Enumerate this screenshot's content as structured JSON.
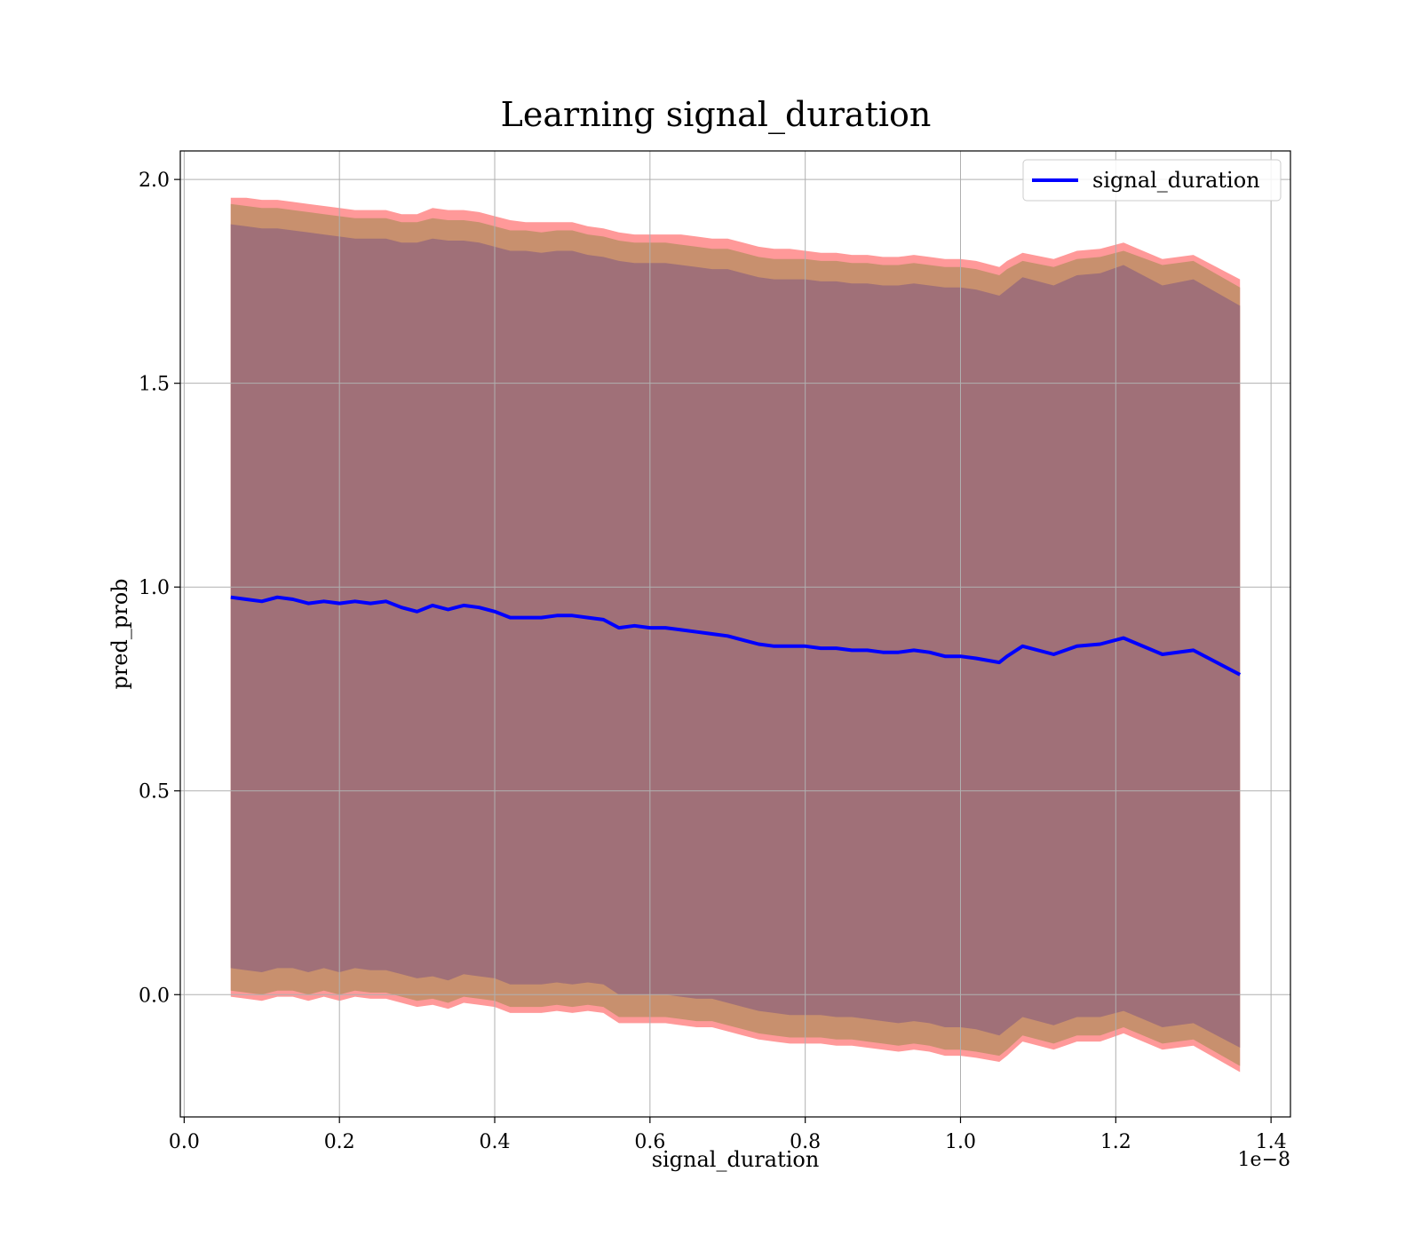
{
  "chart_data": {
    "type": "line",
    "title": "Learning signal_duration",
    "xlabel": "signal_duration",
    "ylabel": "pred_prob",
    "x_offset_label": "1e−8",
    "xlim": [
      -0.005,
      1.425
    ],
    "ylim": [
      -0.3,
      2.07
    ],
    "xticks": [
      0.0,
      0.2,
      0.4,
      0.6,
      0.8,
      1.0,
      1.2,
      1.4
    ],
    "xtick_labels": [
      "0.0",
      "0.2",
      "0.4",
      "0.6",
      "0.8",
      "1.0",
      "1.2",
      "1.4"
    ],
    "yticks": [
      0.0,
      0.5,
      1.0,
      1.5,
      2.0
    ],
    "ytick_labels": [
      "0.0",
      "0.5",
      "1.0",
      "1.5",
      "2.0"
    ],
    "grid": true,
    "legend": {
      "placement": "top-right",
      "entries": [
        "signal_duration"
      ]
    },
    "colors": {
      "line": "#0000ff",
      "band_outer": "#ff9999",
      "band_middle": "#c8906e",
      "band_inner": "#a07078",
      "grid": "#b0b0b0"
    },
    "x": [
      0.06,
      0.08,
      0.1,
      0.12,
      0.14,
      0.16,
      0.18,
      0.2,
      0.22,
      0.24,
      0.26,
      0.28,
      0.3,
      0.32,
      0.34,
      0.36,
      0.38,
      0.4,
      0.42,
      0.44,
      0.46,
      0.48,
      0.5,
      0.52,
      0.54,
      0.56,
      0.58,
      0.6,
      0.62,
      0.64,
      0.66,
      0.68,
      0.7,
      0.72,
      0.74,
      0.76,
      0.78,
      0.8,
      0.82,
      0.84,
      0.86,
      0.88,
      0.9,
      0.92,
      0.94,
      0.96,
      0.98,
      1.0,
      1.02,
      1.05,
      1.06,
      1.08,
      1.12,
      1.15,
      1.18,
      1.21,
      1.26,
      1.3,
      1.36
    ],
    "series": [
      {
        "name": "signal_duration",
        "values": [
          0.975,
          0.97,
          0.965,
          0.975,
          0.97,
          0.96,
          0.965,
          0.96,
          0.965,
          0.96,
          0.965,
          0.95,
          0.94,
          0.955,
          0.945,
          0.955,
          0.95,
          0.94,
          0.925,
          0.925,
          0.925,
          0.93,
          0.93,
          0.925,
          0.92,
          0.9,
          0.905,
          0.9,
          0.9,
          0.895,
          0.89,
          0.885,
          0.88,
          0.87,
          0.86,
          0.855,
          0.855,
          0.855,
          0.85,
          0.85,
          0.845,
          0.845,
          0.84,
          0.84,
          0.845,
          0.84,
          0.83,
          0.83,
          0.825,
          0.815,
          0.83,
          0.855,
          0.835,
          0.855,
          0.86,
          0.875,
          0.835,
          0.845,
          0.785
        ]
      }
    ],
    "bands": [
      {
        "upper": [
          1.955,
          1.955,
          1.95,
          1.95,
          1.945,
          1.94,
          1.935,
          1.93,
          1.925,
          1.925,
          1.925,
          1.915,
          1.915,
          1.93,
          1.925,
          1.925,
          1.92,
          1.91,
          1.9,
          1.895,
          1.895,
          1.895,
          1.895,
          1.885,
          1.88,
          1.87,
          1.865,
          1.865,
          1.865,
          1.865,
          1.86,
          1.855,
          1.855,
          1.845,
          1.835,
          1.83,
          1.83,
          1.825,
          1.82,
          1.82,
          1.815,
          1.815,
          1.81,
          1.81,
          1.815,
          1.81,
          1.805,
          1.805,
          1.8,
          1.785,
          1.8,
          1.82,
          1.805,
          1.825,
          1.83,
          1.845,
          1.805,
          1.815,
          1.755
        ],
        "lower": [
          -0.005,
          -0.01,
          -0.015,
          -0.005,
          -0.005,
          -0.015,
          -0.005,
          -0.015,
          -0.005,
          -0.01,
          -0.01,
          -0.02,
          -0.03,
          -0.025,
          -0.035,
          -0.02,
          -0.025,
          -0.03,
          -0.045,
          -0.045,
          -0.045,
          -0.04,
          -0.045,
          -0.04,
          -0.045,
          -0.07,
          -0.07,
          -0.07,
          -0.07,
          -0.075,
          -0.08,
          -0.08,
          -0.09,
          -0.1,
          -0.11,
          -0.115,
          -0.12,
          -0.12,
          -0.12,
          -0.125,
          -0.125,
          -0.13,
          -0.135,
          -0.14,
          -0.135,
          -0.14,
          -0.15,
          -0.15,
          -0.155,
          -0.165,
          -0.15,
          -0.115,
          -0.135,
          -0.115,
          -0.115,
          -0.095,
          -0.135,
          -0.125,
          -0.19
        ]
      },
      {
        "upper": [
          1.94,
          1.935,
          1.93,
          1.93,
          1.925,
          1.92,
          1.915,
          1.91,
          1.905,
          1.905,
          1.905,
          1.895,
          1.895,
          1.905,
          1.9,
          1.9,
          1.895,
          1.885,
          1.875,
          1.875,
          1.87,
          1.875,
          1.875,
          1.865,
          1.86,
          1.85,
          1.845,
          1.845,
          1.845,
          1.84,
          1.835,
          1.83,
          1.83,
          1.82,
          1.81,
          1.805,
          1.805,
          1.805,
          1.8,
          1.8,
          1.795,
          1.795,
          1.79,
          1.79,
          1.795,
          1.79,
          1.785,
          1.785,
          1.78,
          1.765,
          1.78,
          1.8,
          1.785,
          1.805,
          1.81,
          1.825,
          1.79,
          1.8,
          1.735
        ],
        "lower": [
          0.01,
          0.005,
          0.0,
          0.01,
          0.01,
          0.0,
          0.01,
          0.0,
          0.01,
          0.005,
          0.005,
          -0.005,
          -0.015,
          -0.01,
          -0.02,
          -0.005,
          -0.01,
          -0.015,
          -0.03,
          -0.03,
          -0.03,
          -0.025,
          -0.03,
          -0.025,
          -0.03,
          -0.055,
          -0.055,
          -0.055,
          -0.055,
          -0.06,
          -0.065,
          -0.065,
          -0.075,
          -0.085,
          -0.095,
          -0.1,
          -0.105,
          -0.105,
          -0.105,
          -0.11,
          -0.11,
          -0.115,
          -0.12,
          -0.125,
          -0.12,
          -0.125,
          -0.135,
          -0.135,
          -0.14,
          -0.15,
          -0.135,
          -0.1,
          -0.12,
          -0.1,
          -0.1,
          -0.08,
          -0.12,
          -0.11,
          -0.175
        ]
      },
      {
        "upper": [
          1.89,
          1.885,
          1.88,
          1.88,
          1.875,
          1.87,
          1.865,
          1.86,
          1.855,
          1.855,
          1.855,
          1.845,
          1.845,
          1.855,
          1.85,
          1.85,
          1.845,
          1.835,
          1.825,
          1.825,
          1.82,
          1.825,
          1.825,
          1.815,
          1.81,
          1.8,
          1.795,
          1.795,
          1.795,
          1.79,
          1.785,
          1.78,
          1.78,
          1.77,
          1.76,
          1.755,
          1.755,
          1.755,
          1.75,
          1.75,
          1.745,
          1.745,
          1.74,
          1.74,
          1.745,
          1.74,
          1.735,
          1.735,
          1.73,
          1.715,
          1.73,
          1.76,
          1.74,
          1.765,
          1.77,
          1.79,
          1.74,
          1.755,
          1.69
        ],
        "lower": [
          0.065,
          0.06,
          0.055,
          0.065,
          0.065,
          0.055,
          0.065,
          0.055,
          0.065,
          0.06,
          0.06,
          0.05,
          0.04,
          0.045,
          0.035,
          0.05,
          0.045,
          0.04,
          0.025,
          0.025,
          0.025,
          0.03,
          0.025,
          0.03,
          0.025,
          0.0,
          0.0,
          0.0,
          0.0,
          -0.005,
          -0.01,
          -0.01,
          -0.02,
          -0.03,
          -0.04,
          -0.045,
          -0.05,
          -0.05,
          -0.05,
          -0.055,
          -0.055,
          -0.06,
          -0.065,
          -0.07,
          -0.065,
          -0.07,
          -0.08,
          -0.08,
          -0.085,
          -0.1,
          -0.085,
          -0.055,
          -0.075,
          -0.055,
          -0.055,
          -0.04,
          -0.08,
          -0.07,
          -0.13
        ]
      }
    ]
  }
}
